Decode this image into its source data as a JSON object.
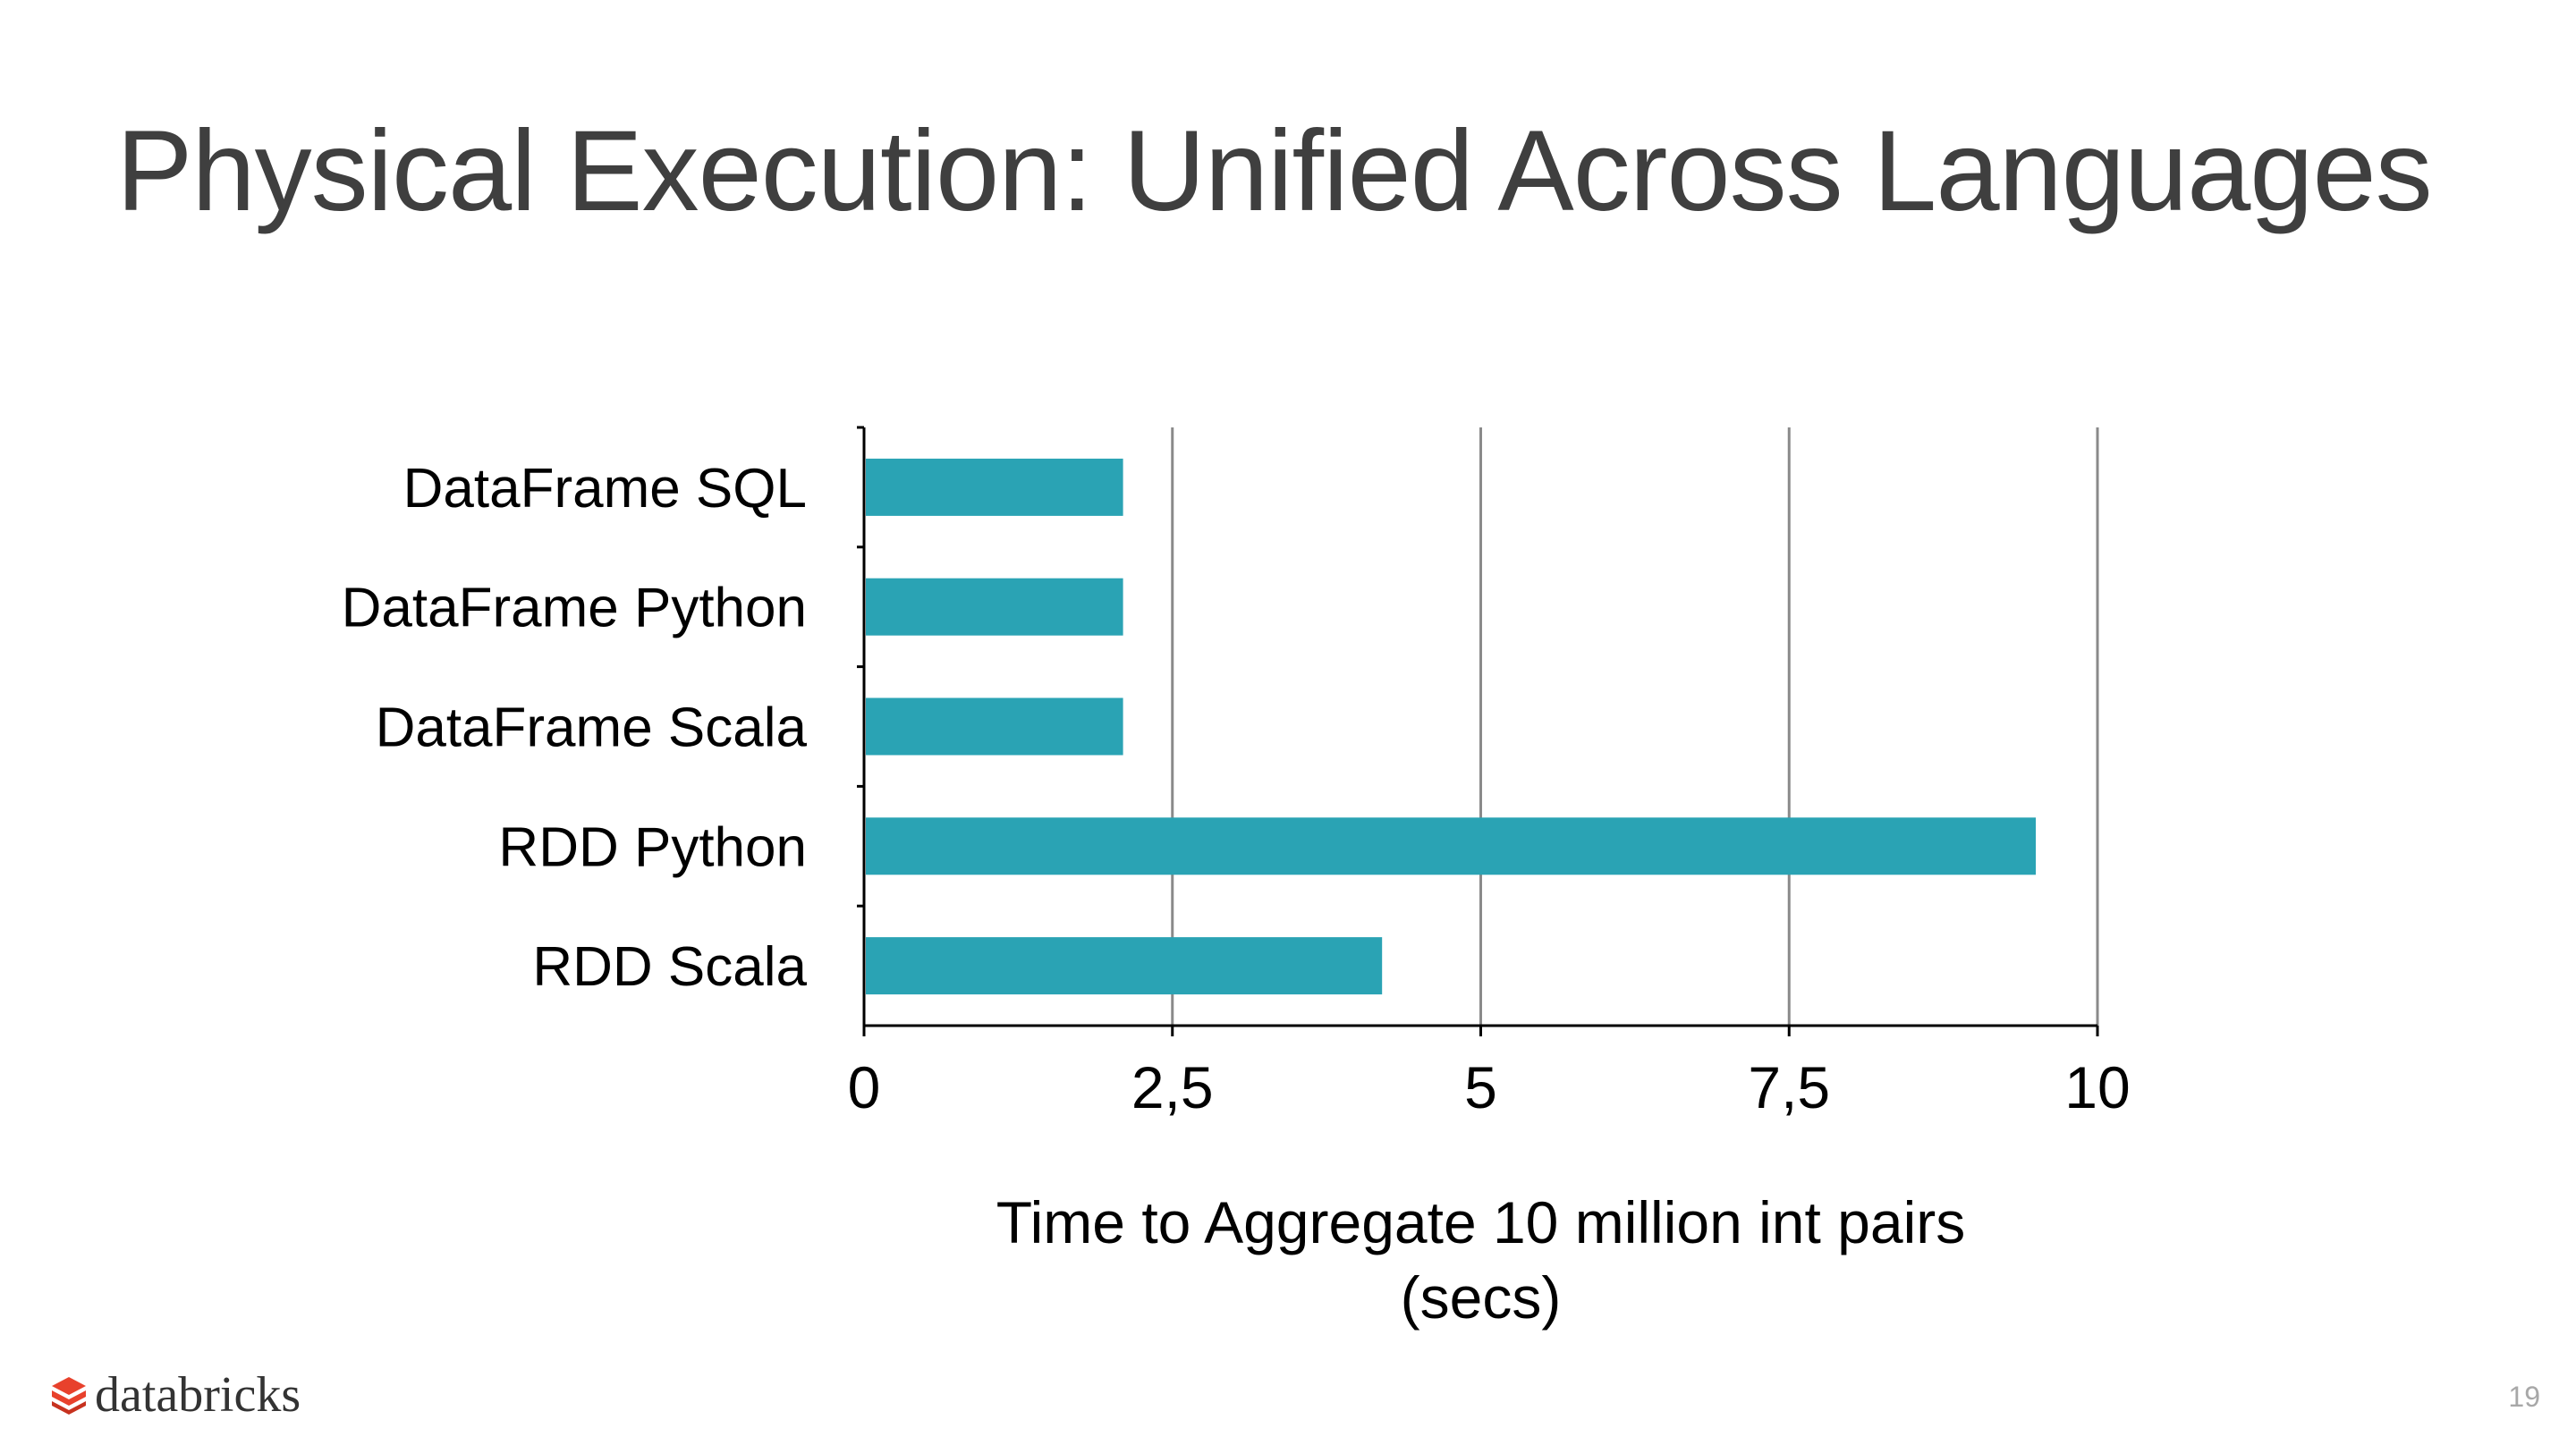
{
  "slide": {
    "title": "Physical Execution: Unified Across Languages",
    "page_number": "19",
    "logo_text": "databricks"
  },
  "colors": {
    "bar": "#2aa3b4",
    "grid": "#8a8a8a",
    "axis": "#000000",
    "title": "#3f3f3f",
    "logo_mark": "#e8412c"
  },
  "chart_data": {
    "type": "bar",
    "orientation": "horizontal",
    "categories": [
      "DataFrame SQL",
      "DataFrame Python",
      "DataFrame Scala",
      "RDD Python",
      "RDD Scala"
    ],
    "values": [
      2.1,
      2.1,
      2.1,
      9.5,
      4.2
    ],
    "xlabel_lines": [
      "Time to Aggregate 10 million int pairs",
      "(secs)"
    ],
    "ylabel": "",
    "xlim": [
      0,
      10
    ],
    "ticks": [
      0,
      2.5,
      5,
      7.5,
      10
    ],
    "tick_labels": [
      "0",
      "2,5",
      "5",
      "7,5",
      "10"
    ],
    "grid": "vertical",
    "legend": "none"
  }
}
